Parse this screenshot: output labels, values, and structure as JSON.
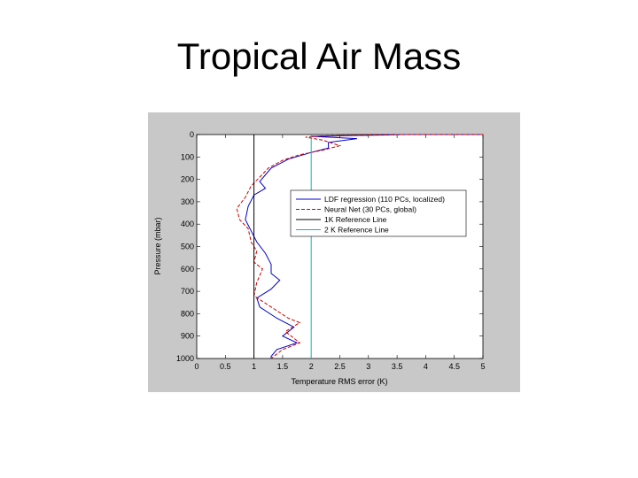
{
  "slide": {
    "title": "Tropical Air Mass"
  },
  "chart_data": {
    "type": "line",
    "title": "",
    "xlabel": "Temperature RMS error (K)",
    "ylabel": "Pressure (mbar)",
    "xlim": [
      0,
      5
    ],
    "ylim": [
      0,
      1000
    ],
    "y_inverted": true,
    "x_ticks": [
      "0",
      "0.5",
      "1",
      "1.5",
      "2",
      "2.5",
      "3",
      "3.5",
      "4",
      "4.5",
      "5"
    ],
    "y_ticks": [
      "0",
      "100",
      "200",
      "300",
      "400",
      "500",
      "600",
      "700",
      "800",
      "900",
      "1000"
    ],
    "legend_position": "upper-right",
    "grid": false,
    "series": [
      {
        "name": "LDF regression (110 PCs, localized)",
        "color": "#0000cc",
        "dash": "",
        "points": [
          [
            5.0,
            0
          ],
          [
            3.6,
            0
          ],
          [
            3.3,
            2
          ],
          [
            2.6,
            5
          ],
          [
            2.0,
            8
          ],
          [
            2.8,
            18
          ],
          [
            2.3,
            35
          ],
          [
            2.3,
            60
          ],
          [
            2.0,
            80
          ],
          [
            1.6,
            110
          ],
          [
            1.3,
            150
          ],
          [
            1.2,
            180
          ],
          [
            1.1,
            210
          ],
          [
            1.2,
            240
          ],
          [
            1.0,
            270
          ],
          [
            0.9,
            320
          ],
          [
            0.85,
            380
          ],
          [
            0.95,
            430
          ],
          [
            1.05,
            480
          ],
          [
            1.2,
            530
          ],
          [
            1.3,
            580
          ],
          [
            1.3,
            620
          ],
          [
            1.45,
            650
          ],
          [
            1.3,
            690
          ],
          [
            1.05,
            730
          ],
          [
            1.1,
            770
          ],
          [
            1.4,
            820
          ],
          [
            1.7,
            860
          ],
          [
            1.5,
            900
          ],
          [
            1.75,
            930
          ],
          [
            1.4,
            960
          ],
          [
            1.3,
            990
          ],
          [
            1.3,
            1000
          ]
        ]
      },
      {
        "name": "Neural Net (30 PCs, global)",
        "color": "#cc0000",
        "dash": "4,2",
        "points": [
          [
            5.0,
            0
          ],
          [
            3.3,
            0
          ],
          [
            2.9,
            3
          ],
          [
            2.2,
            6
          ],
          [
            1.9,
            12
          ],
          [
            2.2,
            25
          ],
          [
            2.5,
            50
          ],
          [
            2.2,
            70
          ],
          [
            1.8,
            90
          ],
          [
            1.5,
            115
          ],
          [
            1.25,
            150
          ],
          [
            1.1,
            190
          ],
          [
            0.95,
            230
          ],
          [
            0.85,
            280
          ],
          [
            0.7,
            330
          ],
          [
            0.75,
            380
          ],
          [
            0.9,
            420
          ],
          [
            0.95,
            480
          ],
          [
            1.05,
            520
          ],
          [
            1.0,
            570
          ],
          [
            1.15,
            600
          ],
          [
            1.05,
            660
          ],
          [
            1.0,
            720
          ],
          [
            1.3,
            770
          ],
          [
            1.6,
            820
          ],
          [
            1.8,
            840
          ],
          [
            1.55,
            880
          ],
          [
            1.8,
            930
          ],
          [
            1.5,
            960
          ],
          [
            1.3,
            1000
          ]
        ]
      },
      {
        "name": "1K Reference Line",
        "color": "#000000",
        "dash": "",
        "points": [
          [
            1,
            0
          ],
          [
            1,
            1000
          ]
        ]
      },
      {
        "name": "2 K Reference Line",
        "color": "#00bbcc",
        "dash": "",
        "points": [
          [
            2,
            0
          ],
          [
            2,
            1000
          ]
        ]
      }
    ]
  }
}
